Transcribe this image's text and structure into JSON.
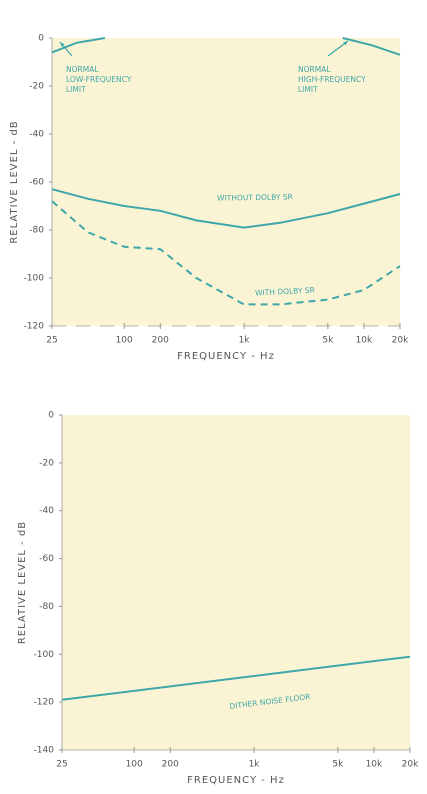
{
  "chart_data": [
    {
      "type": "line",
      "log_x": true,
      "x_label": "FREQUENCY - Hz",
      "y_label": "RELATIVE LEVEL - dB",
      "xlim": [
        25,
        20000
      ],
      "ylim": [
        -120,
        0
      ],
      "xticks": [
        25,
        100,
        200,
        {
          "value": 1000,
          "label": "1k"
        },
        {
          "value": 5000,
          "label": "5k"
        },
        {
          "value": 10000,
          "label": "10k"
        },
        {
          "value": 20000,
          "label": "20k"
        }
      ],
      "yticks": [
        0,
        -20,
        -40,
        -60,
        -80,
        -100,
        -120
      ],
      "background": "#fbf4d4",
      "series": [
        {
          "name": "WITHOUT DOLBY SR",
          "color": "#3ea7a9",
          "dashed": false,
          "x": [
            25,
            50,
            100,
            200,
            400,
            1000,
            2000,
            5000,
            10000,
            20000
          ],
          "values": [
            -63,
            -67,
            -70,
            -72,
            -76,
            -79,
            -77,
            -73,
            -69,
            -65
          ]
        },
        {
          "name": "WITH DOLBY SR",
          "color": "#3ea7a9",
          "dashed": true,
          "x": [
            25,
            50,
            100,
            200,
            400,
            1000,
            2000,
            5000,
            10000,
            20000
          ],
          "values": [
            -68,
            -81,
            -87,
            -88,
            -100,
            -111,
            -111,
            -109,
            -105,
            -95
          ]
        },
        {
          "color": "#3ea7a9",
          "dashed": false,
          "x": [
            25,
            40,
            69
          ],
          "values": [
            -6,
            -2,
            0
          ]
        },
        {
          "color": "#3ea7a9",
          "dashed": false,
          "x": [
            6650,
            11600,
            20000
          ],
          "values": [
            0,
            -3,
            -7
          ]
        }
      ],
      "annotations": [
        {
          "lines": [
            "NORMAL",
            "LOW-FREQUENCY",
            "LIMIT"
          ]
        },
        {
          "lines": [
            "NORMAL",
            "HIGH-FREQUENCY",
            "LIMIT"
          ]
        }
      ]
    },
    {
      "type": "line",
      "log_x": true,
      "x_label": "FREQUENCY - Hz",
      "y_label": "RELATIVE LEVEL - dB",
      "xlim": [
        25,
        20000
      ],
      "ylim": [
        -140,
        0
      ],
      "xticks": [
        25,
        100,
        200,
        {
          "value": 1000,
          "label": "1k"
        },
        {
          "value": 5000,
          "label": "5k"
        },
        {
          "value": 10000,
          "label": "10k"
        },
        {
          "value": 20000,
          "label": "20k"
        }
      ],
      "yticks": [
        0,
        -20,
        -40,
        -60,
        -80,
        -100,
        -120,
        -140
      ],
      "background": "#fbf4d4",
      "series": [
        {
          "name": "DITHER NOISE FLOOR",
          "color": "#3ea7a9",
          "dashed": false,
          "x": [
            25,
            20000
          ],
          "values": [
            -119,
            -101
          ]
        }
      ],
      "annotations": []
    }
  ]
}
